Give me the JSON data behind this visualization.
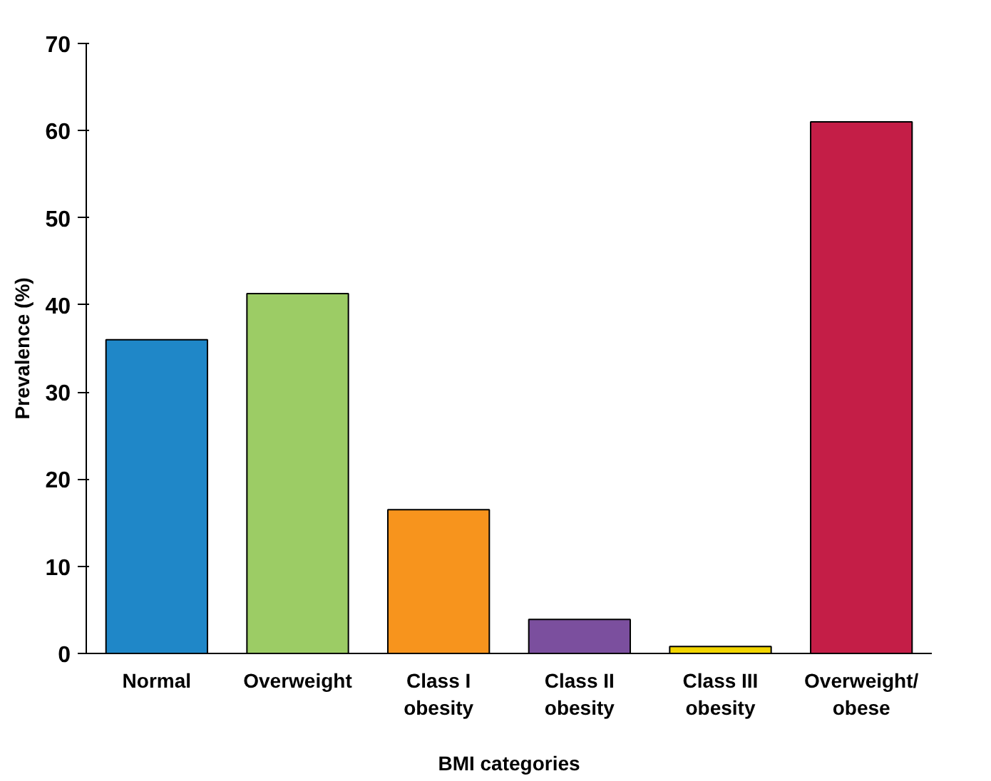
{
  "chart_data": {
    "type": "bar",
    "xlabel": "BMI categories",
    "ylabel": "Prevalence (%)",
    "categories": [
      "Normal",
      "Overweight",
      "Class I obesity",
      "Class II obesity",
      "Class III obesity",
      "Overweight/obese"
    ],
    "values": [
      36.0,
      41.3,
      16.5,
      3.9,
      0.8,
      61.0
    ],
    "colors": [
      "#1f87c8",
      "#9ccc65",
      "#f7941d",
      "#7b4f9e",
      "#f2d500",
      "#c41e47"
    ],
    "ylim": [
      0,
      70
    ],
    "yticks": [
      0,
      10,
      20,
      30,
      40,
      50,
      60,
      70
    ]
  }
}
